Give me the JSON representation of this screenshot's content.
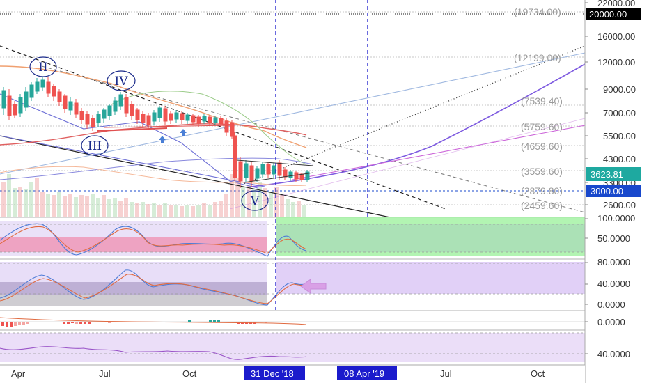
{
  "chart_data": {
    "type": "candlestick",
    "x_labels": [
      "Apr",
      "Jul",
      "Oct",
      "Jul",
      "Oct"
    ],
    "price_axis_labels": [
      "22000.00",
      "16000.00",
      "12000.00",
      "9000.00",
      "7000.00",
      "5500.00",
      "4300.00",
      "3300.00",
      "2600.00"
    ],
    "price_levels": [
      "(19734.00)",
      "(12199.00)",
      "(7539.40)",
      "(5759.60)",
      "(4659.60)",
      "(3559.60)",
      "(2879.80)",
      "(2459.60)"
    ],
    "price_tags": {
      "top": "20000.00",
      "current": "3623.81",
      "marker": "3000.00"
    },
    "date_markers": [
      "31 Dec '18",
      "08 Apr '19"
    ],
    "wave_labels": [
      "II",
      "III",
      "IV",
      "V"
    ],
    "indicator_axes": [
      {
        "labels": [
          "100.0000",
          "50.0000"
        ]
      },
      {
        "labels": [
          "80.0000",
          "40.0000",
          "0.0000"
        ]
      },
      {
        "labels": [
          "0.0000"
        ]
      },
      {
        "labels": [
          "40.0000"
        ]
      }
    ]
  },
  "colors": {
    "bull": "#26a69a",
    "bear": "#ef5350",
    "date_marker": "#1b1bcc",
    "tag_blue": "#1848cc",
    "tag_black": "#000000"
  }
}
